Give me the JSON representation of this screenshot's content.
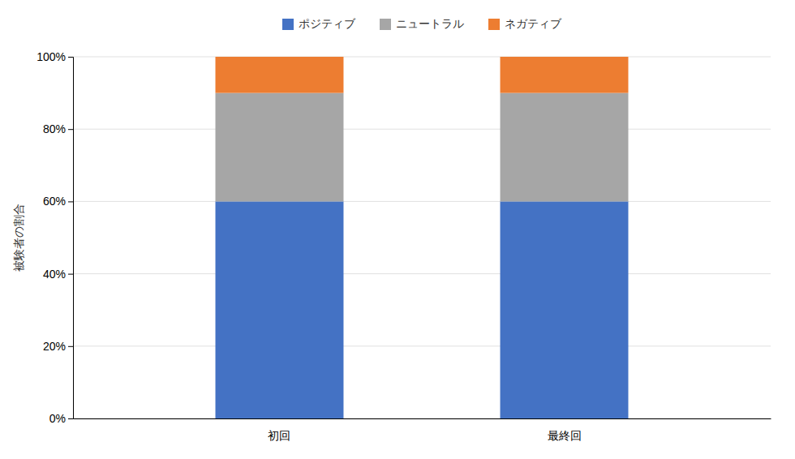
{
  "chart_data": {
    "type": "bar",
    "stacked": true,
    "categories": [
      "初回",
      "最終回"
    ],
    "series": [
      {
        "name": "ポジティブ",
        "color": "#4472C4",
        "values": [
          0.6,
          0.6
        ]
      },
      {
        "name": "ニュートラル",
        "color": "#A6A6A6",
        "values": [
          0.3,
          0.3
        ]
      },
      {
        "name": "ネガティブ",
        "color": "#ED7D31",
        "values": [
          0.1,
          0.1
        ]
      }
    ],
    "ylabel": "被験者の割合",
    "ylim": [
      0.0,
      1.0
    ],
    "yticks": [
      {
        "value": 0.0,
        "label": "0%"
      },
      {
        "value": 0.2,
        "label": "20%"
      },
      {
        "value": 0.4,
        "label": "40%"
      },
      {
        "value": 0.6,
        "label": "60%"
      },
      {
        "value": 0.8,
        "label": "80%"
      },
      {
        "value": 1.0,
        "label": "100%"
      }
    ],
    "grid": true,
    "legend": "top"
  }
}
